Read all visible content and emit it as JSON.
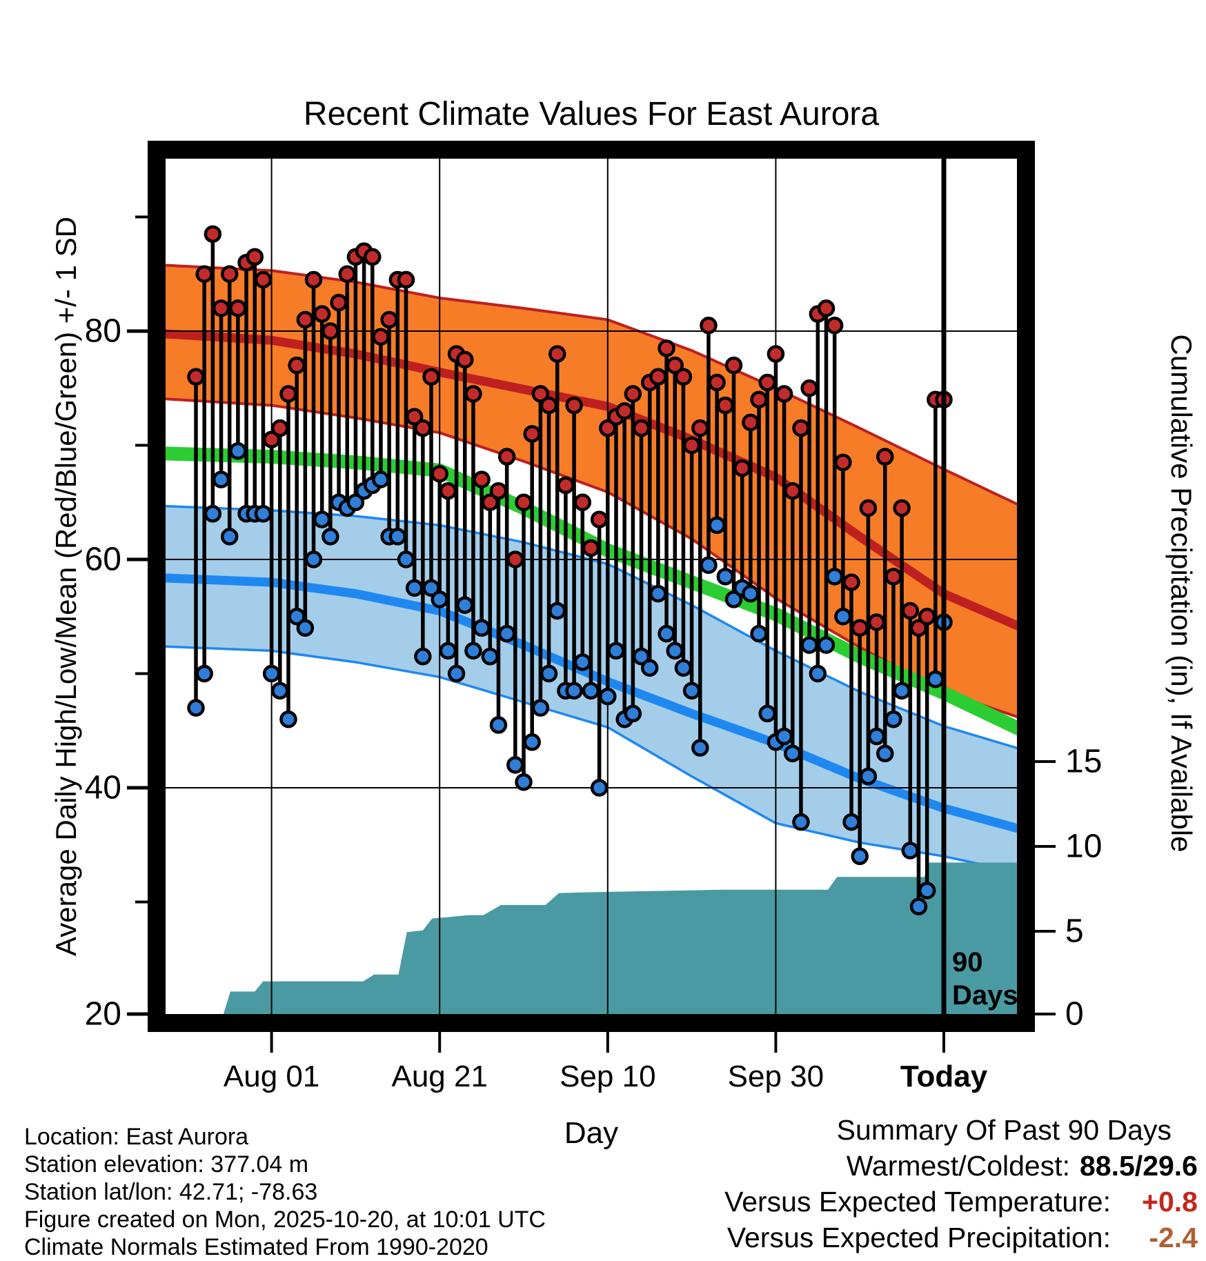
{
  "title": "Recent Climate Values For East Aurora",
  "left_axis": {
    "label": "Average Daily High/Low/Mean (Red/Blue/Green) +/- 1 SD",
    "major_ticks": [
      20,
      40,
      60,
      80
    ],
    "minor_ticks": [
      30,
      50,
      70,
      90
    ]
  },
  "right_axis": {
    "label": "Cumulative Precipitation (in), If Available",
    "major_ticks": [
      0,
      5,
      10,
      15
    ]
  },
  "x_axis": {
    "label": "Day",
    "ticks": [
      {
        "label": "Aug 01",
        "day_index": 9,
        "bold": false
      },
      {
        "label": "Aug 21",
        "day_index": 29,
        "bold": false
      },
      {
        "label": "Sep 10",
        "day_index": 49,
        "bold": false
      },
      {
        "label": "Sep 30",
        "day_index": 69,
        "bold": false
      },
      {
        "label": "Today",
        "day_index": 89,
        "bold": true
      }
    ]
  },
  "annotation": {
    "line1": "90",
    "line2": "Days"
  },
  "footer": {
    "lines": [
      "Location: East Aurora",
      "Station elevation: 377.04 m",
      "Station lat/lon: 42.71; -78.63",
      "Figure created on Mon, 2025-10-20, at 10:01 UTC",
      "Climate Normals Estimated From 1990-2020"
    ]
  },
  "summary": {
    "heading": "Summary Of Past 90 Days",
    "rows": [
      {
        "label": "Warmest/Coldest:",
        "value": "88.5/29.6",
        "color": "black"
      },
      {
        "label": "Versus Expected Temperature:",
        "value": "+0.8",
        "color": "red"
      },
      {
        "label": "Versus Expected Precipitation:",
        "value": "-2.4",
        "color": "sienna"
      }
    ]
  },
  "style": {
    "orange_band": "#f67c28",
    "dark_red_line": "#be2020",
    "green_line": "#2ccd32",
    "blue_band": "#a4cde9",
    "blue_line": "#1e88f0",
    "teal_area": "#4a9aa3",
    "high_dot": "#c32b2b",
    "low_dot": "#2f7ed8",
    "stem": "#000000",
    "grid": "#000000"
  },
  "chart_data": {
    "type": "line",
    "subtype": "climate stripes: daily high/low stems + normal bands + cumulative precipitation area",
    "title": "Recent Climate Values For East Aurora",
    "xlabel": "Day",
    "ylabel_left": "Average Daily High/Low/Mean (Red/Blue/Green) +/- 1 SD",
    "ylabel_right": "Cumulative Precipitation (in), If Available",
    "temp_axis_range": [
      20,
      95
    ],
    "precip_axis_range": [
      0,
      15
    ],
    "x_range_days": [
      -3.6,
      97.7
    ],
    "today_day_index": 89,
    "x_tick_days": [
      9,
      29,
      49,
      69,
      89
    ],
    "daily": {
      "note": "index 0 = 90 days ago (Jul 23), index 89 = Today (Oct 20)",
      "highs": [
        76,
        85,
        88.5,
        82,
        85,
        82,
        86,
        86.5,
        84.5,
        70.5,
        71.5,
        74.5,
        77,
        81,
        84.5,
        81.5,
        80,
        82.5,
        85,
        86.5,
        87,
        86.5,
        79.5,
        81,
        84.5,
        84.5,
        72.5,
        71.5,
        76,
        67.5,
        66,
        78,
        77.5,
        74.5,
        67,
        65,
        66,
        69,
        60,
        65,
        71,
        74.5,
        73.5,
        78,
        66.5,
        73.5,
        65,
        61,
        63.5,
        71.5,
        72.5,
        73,
        74.5,
        71.5,
        75.5,
        76,
        78.5,
        77,
        76,
        70,
        71.5,
        80.5,
        75.5,
        73.5,
        77,
        68,
        72,
        74,
        75.5,
        78,
        74.5,
        66,
        71.5,
        75,
        81.5,
        82,
        80.5,
        68.5,
        58,
        54,
        64.5,
        54.5,
        69,
        58.5,
        64.5,
        55.5,
        54,
        55,
        74,
        74
      ],
      "lows": [
        47,
        50,
        64,
        67,
        62,
        69.5,
        64,
        64,
        64,
        50,
        48.5,
        46,
        55,
        54,
        60,
        63.5,
        62,
        65,
        64.5,
        65,
        66,
        66.5,
        67,
        62,
        62,
        60,
        57.5,
        51.5,
        57.5,
        56.5,
        52,
        50,
        56,
        52,
        54,
        51.5,
        45.5,
        53.5,
        42,
        40.5,
        44,
        47,
        50,
        55.5,
        48.5,
        48.5,
        51,
        48.5,
        40,
        48,
        52,
        46,
        46.5,
        51.5,
        50.5,
        57,
        53.5,
        52,
        50.5,
        48.5,
        43.5,
        59.5,
        63,
        58.5,
        56.5,
        57.5,
        57,
        53.5,
        46.5,
        44,
        44.5,
        43,
        37,
        52.5,
        50,
        52.5,
        58.5,
        55,
        37,
        34,
        41,
        44.5,
        43,
        46,
        48.5,
        34.5,
        29.6,
        31,
        49.5,
        54.5
      ]
    },
    "normals": {
      "days": [
        -4.5,
        9,
        19,
        29,
        39,
        49,
        59,
        69,
        79,
        89,
        99
      ],
      "high_plus_sd": [
        85.8,
        85.3,
        84.3,
        82.9,
        82.0,
        81.0,
        78.3,
        75.0,
        71.5,
        67.9,
        64.4
      ],
      "high_mean": [
        79.8,
        79.2,
        78.0,
        76.4,
        74.9,
        73.4,
        70.5,
        67.2,
        62.0,
        57.0,
        53.8
      ],
      "high_minus_sd": [
        74.1,
        73.5,
        72.4,
        71.1,
        68.6,
        65.9,
        61.8,
        56.6,
        52.3,
        48.4,
        45.9
      ],
      "mean": [
        69.3,
        69.0,
        68.5,
        67.8,
        64.5,
        60.8,
        58.0,
        55.2,
        51.5,
        48.3,
        44.8
      ],
      "low_plus_sd": [
        64.7,
        64.3,
        63.8,
        63.0,
        61.5,
        59.6,
        56.0,
        52.0,
        48.4,
        45.4,
        43.2
      ],
      "low_mean": [
        58.4,
        58.0,
        57.0,
        55.5,
        52.5,
        49.3,
        46.5,
        43.9,
        40.8,
        38.2,
        36.2
      ],
      "low_minus_sd": [
        52.4,
        52.0,
        51.0,
        49.7,
        47.5,
        45.3,
        41.0,
        36.9,
        35.2,
        34.0,
        32.4
      ]
    },
    "precip_cumulative_in": {
      "points": [
        [
          -3.6,
          0
        ],
        [
          3.2,
          0
        ],
        [
          4.1,
          1.45
        ],
        [
          7.0,
          1.45
        ],
        [
          8.0,
          2.05
        ],
        [
          19.9,
          2.05
        ],
        [
          21.2,
          2.45
        ],
        [
          24.1,
          2.45
        ],
        [
          25.1,
          4.95
        ],
        [
          27.0,
          5.05
        ],
        [
          28.1,
          5.75
        ],
        [
          32.5,
          5.95
        ],
        [
          34.2,
          5.95
        ],
        [
          36.3,
          6.55
        ],
        [
          41.6,
          6.55
        ],
        [
          43.2,
          7.25
        ],
        [
          47.0,
          7.3
        ],
        [
          62.7,
          7.45
        ],
        [
          75.2,
          7.45
        ],
        [
          76.3,
          8.2
        ],
        [
          86.7,
          8.2
        ],
        [
          87.1,
          9.05
        ],
        [
          97.7,
          9.05
        ]
      ],
      "final_total": 9.05
    },
    "grid": {
      "h_temps": [
        40,
        60,
        80
      ],
      "v_days": [
        9,
        29,
        49,
        69
      ]
    },
    "legend_position": "none"
  }
}
